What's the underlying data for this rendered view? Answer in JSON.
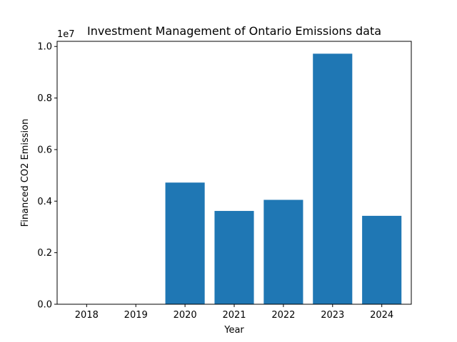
{
  "chart_data": {
    "type": "bar",
    "title": "Investment Management of Ontario Emissions data",
    "xlabel": "Year",
    "ylabel": "Financed CO2 Emission",
    "categories": [
      "2018",
      "2019",
      "2020",
      "2021",
      "2022",
      "2023",
      "2024"
    ],
    "values": [
      0,
      0,
      4720000,
      3620000,
      4050000,
      9720000,
      3430000
    ],
    "ylim": [
      0,
      10200000
    ],
    "yticks": [
      0,
      2000000,
      4000000,
      6000000,
      8000000,
      10000000
    ],
    "ytick_labels": [
      "0.0",
      "0.2",
      "0.4",
      "0.6",
      "0.8",
      "1.0"
    ],
    "y_offset_label": "1e7",
    "bar_color": "#1f77b4",
    "grid": false,
    "legend": "none"
  }
}
